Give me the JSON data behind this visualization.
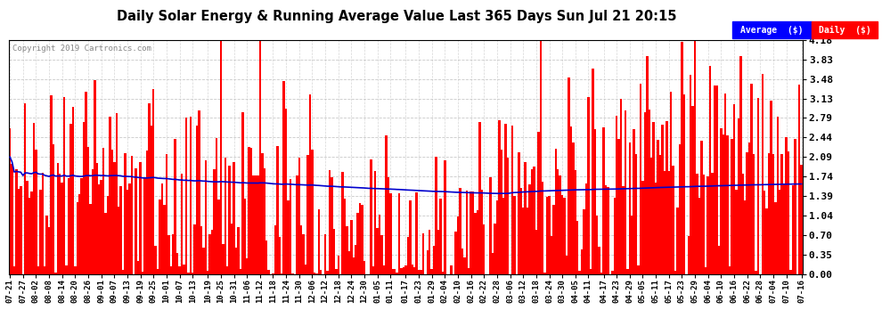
{
  "title": "Daily Solar Energy & Running Average Value Last 365 Days Sun Jul 21 20:15",
  "copyright": "Copyright 2019 Cartronics.com",
  "bar_color": "#FF0000",
  "avg_color": "#0000CD",
  "background_color": "#FFFFFF",
  "plot_bg_color": "#FFFFFF",
  "grid_color": "#BBBBBB",
  "ylim": [
    0.0,
    4.18
  ],
  "yticks": [
    0.0,
    0.35,
    0.7,
    1.04,
    1.39,
    1.74,
    2.09,
    2.44,
    2.79,
    3.13,
    3.48,
    3.83,
    4.18
  ],
  "legend_avg_label": "Average  ($)",
  "legend_daily_label": "Daily  ($)",
  "n_days": 365,
  "seed": 42,
  "x_tick_labels": [
    "07-21",
    "07-27",
    "08-02",
    "08-08",
    "08-14",
    "08-20",
    "08-26",
    "09-01",
    "09-07",
    "09-13",
    "09-19",
    "09-25",
    "10-01",
    "10-07",
    "10-13",
    "10-19",
    "10-25",
    "10-31",
    "11-06",
    "11-12",
    "11-18",
    "11-24",
    "11-30",
    "12-06",
    "12-12",
    "12-18",
    "12-24",
    "12-30",
    "01-05",
    "01-11",
    "01-17",
    "01-23",
    "01-29",
    "02-04",
    "02-10",
    "02-16",
    "02-22",
    "02-28",
    "03-06",
    "03-12",
    "03-18",
    "03-24",
    "03-30",
    "04-05",
    "04-11",
    "04-17",
    "04-23",
    "04-29",
    "05-05",
    "05-11",
    "05-17",
    "05-23",
    "05-29",
    "06-04",
    "06-10",
    "06-16",
    "06-22",
    "06-28",
    "07-04",
    "07-10",
    "07-16"
  ]
}
